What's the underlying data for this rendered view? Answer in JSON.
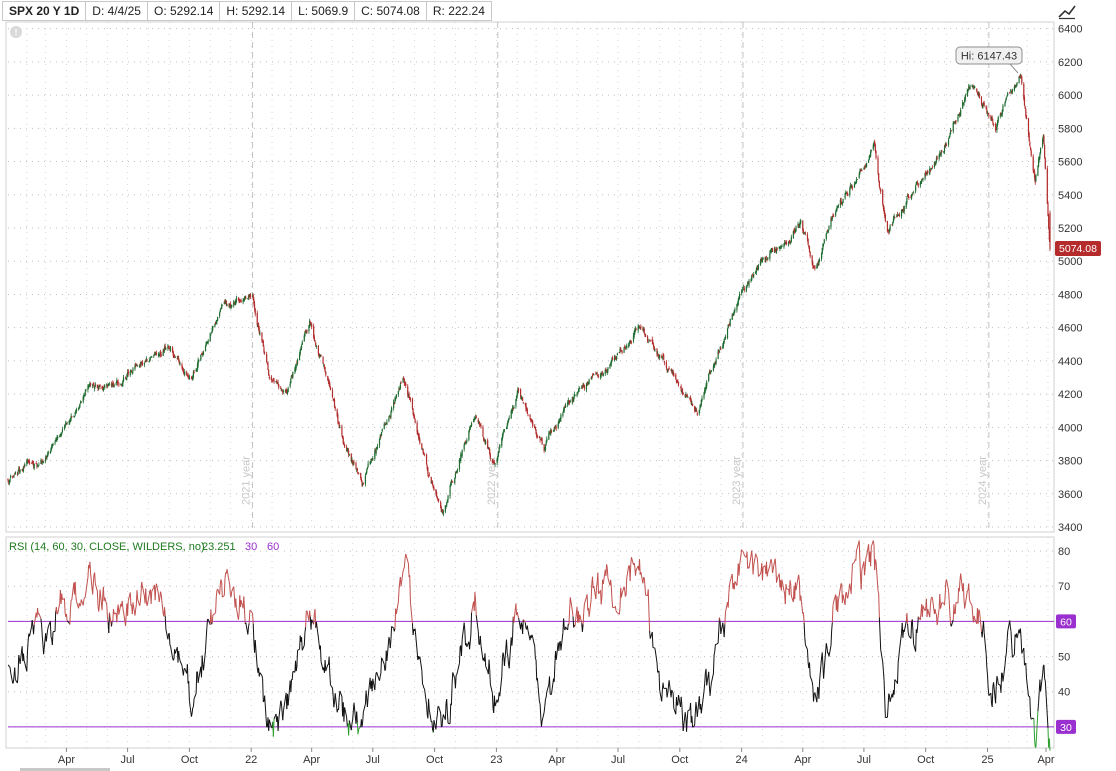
{
  "header": {
    "symbol": "SPX 20 Y 1D",
    "date": "D: 4/4/25",
    "open": "O: 5292.14",
    "high": "H: 5292.14",
    "low": "L: 5069.9",
    "close": "C: 5074.08",
    "range": "R: 222.24"
  },
  "rsi_legend": {
    "study": "RSI (14, 60, 30, CLOSE, WILDERS, no)",
    "value": "23.251",
    "oversold": "30",
    "overbought": "60"
  },
  "price_flags": {
    "high_label": "Hi: 6147.43",
    "last_price": "5074.08"
  },
  "colors": {
    "up": "#1e6b30",
    "down": "#b22d2d",
    "rsi_line": "#111111",
    "rsi_over": "#c0504d",
    "rsi_under": "#2ea02e",
    "level_line": "#9b30d0",
    "last_flag": "#b52a2a",
    "grid": "#bdbdbd"
  },
  "chart_data": [
    {
      "type": "candlestick",
      "title": "SPX 20 Y 1D",
      "y_ticks": [
        3400,
        3600,
        3800,
        4000,
        4200,
        4400,
        4600,
        4800,
        5000,
        5200,
        5400,
        5600,
        5800,
        6000,
        6200,
        6400
      ],
      "ylim": [
        3370,
        6440
      ],
      "year_markers": [
        "2021 year",
        "2022 year",
        "2023 year",
        "2024 year"
      ],
      "x_dates": [
        "2021-01-04",
        "2021-03-03",
        "2021-05-07",
        "2021-06-15",
        "2021-08-16",
        "2021-09-01",
        "2021-10-04",
        "2021-11-18",
        "2022-01-03",
        "2022-01-27",
        "2022-02-23",
        "2022-03-29",
        "2022-05-20",
        "2022-06-16",
        "2022-08-16",
        "2022-09-30",
        "2022-10-13",
        "2022-11-30",
        "2022-12-28",
        "2023-02-02",
        "2023-03-13",
        "2023-04-18",
        "2023-06-12",
        "2023-07-31",
        "2023-09-01",
        "2023-10-27",
        "2023-12-28",
        "2024-03-28",
        "2024-04-19",
        "2024-05-21",
        "2024-07-16",
        "2024-08-05",
        "2024-09-06",
        "2024-10-31",
        "2024-12-06",
        "2025-01-13",
        "2025-02-19",
        "2025-03-13",
        "2025-03-25",
        "2025-04-04"
      ],
      "close": [
        3700,
        3820,
        4230,
        4250,
        4460,
        4520,
        4300,
        4700,
        4800,
        4320,
        4220,
        4630,
        3900,
        3670,
        4300,
        3590,
        3490,
        4080,
        3780,
        4180,
        3860,
        4150,
        4350,
        4590,
        4420,
        4110,
        4780,
        5250,
        4970,
        5300,
        5670,
        5180,
        5410,
        5710,
        6080,
        5830,
        6140,
        5520,
        5780,
        5074
      ],
      "x_ticks": [
        "Apr",
        "Jul",
        "Oct",
        "22",
        "Apr",
        "Jul",
        "Oct",
        "23",
        "Apr",
        "Jul",
        "Oct",
        "24",
        "Apr",
        "Jul",
        "Oct",
        "25",
        "Apr"
      ]
    },
    {
      "type": "line",
      "title": "RSI (14, 60, 30, CLOSE, WILDERS, no)",
      "y_ticks": [
        30,
        40,
        50,
        60,
        70,
        80
      ],
      "ylim": [
        24,
        84
      ],
      "levels": [
        30,
        60
      ],
      "last_value": 23.251,
      "x_dates": [
        "2021-01-04",
        "2021-03-03",
        "2021-05-07",
        "2021-06-15",
        "2021-08-16",
        "2021-09-01",
        "2021-10-04",
        "2021-11-18",
        "2022-01-03",
        "2022-01-27",
        "2022-02-23",
        "2022-03-29",
        "2022-05-20",
        "2022-06-16",
        "2022-08-16",
        "2022-09-30",
        "2022-10-13",
        "2022-11-30",
        "2022-12-28",
        "2023-02-02",
        "2023-03-13",
        "2023-04-18",
        "2023-06-12",
        "2023-07-31",
        "2023-09-01",
        "2023-10-27",
        "2023-12-28",
        "2024-03-28",
        "2024-04-19",
        "2024-05-21",
        "2024-07-16",
        "2024-08-05",
        "2024-09-06",
        "2024-10-31",
        "2024-12-06",
        "2025-01-13",
        "2025-02-19",
        "2025-03-13",
        "2025-03-25",
        "2025-04-04"
      ],
      "values": [
        45,
        58,
        72,
        58,
        70,
        54,
        38,
        70,
        62,
        28,
        36,
        62,
        34,
        30,
        72,
        34,
        29,
        64,
        40,
        66,
        34,
        60,
        70,
        76,
        44,
        30,
        78,
        68,
        36,
        64,
        80,
        34,
        58,
        66,
        70,
        40,
        62,
        28,
        48,
        23.251
      ]
    }
  ]
}
